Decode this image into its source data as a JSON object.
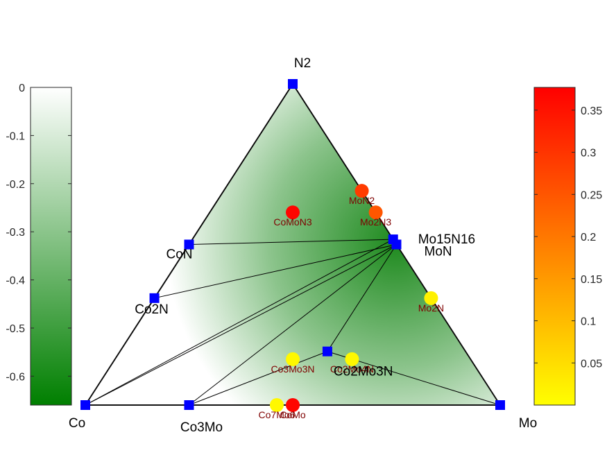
{
  "chart_data": {
    "type": "ternary-phase-diagram",
    "corners": {
      "top": "N2",
      "bottom_left": "Co",
      "bottom_right": "Mo"
    },
    "stable_phases": [
      {
        "name": "N2",
        "x_Co": 0,
        "x_Mo": 0,
        "x_N": 1,
        "label": "N2"
      },
      {
        "name": "Co",
        "x_Co": 1,
        "x_Mo": 0,
        "x_N": 0,
        "label": "Co"
      },
      {
        "name": "Mo",
        "x_Co": 0,
        "x_Mo": 1,
        "x_N": 0,
        "label": "Mo"
      },
      {
        "name": "CoN",
        "x_Co": 0.5,
        "x_Mo": 0,
        "x_N": 0.5,
        "label": "CoN"
      },
      {
        "name": "Co2N",
        "x_Co": 0.667,
        "x_Mo": 0,
        "x_N": 0.333,
        "label": "Co2N"
      },
      {
        "name": "Co3Mo",
        "x_Co": 0.75,
        "x_Mo": 0.25,
        "x_N": 0,
        "label": "Co3Mo"
      },
      {
        "name": "Mo15N16",
        "x_Co": 0,
        "x_Mo": 0.484,
        "x_N": 0.516,
        "label": "Mo15N16"
      },
      {
        "name": "MoN",
        "x_Co": 0,
        "x_Mo": 0.5,
        "x_N": 0.5,
        "label": "MoN"
      },
      {
        "name": "Co2Mo3N",
        "x_Co": 0.333,
        "x_Mo": 0.5,
        "x_N": 0.167,
        "label": "Co2Mo3N"
      }
    ],
    "tie_lines": [
      [
        "N2",
        "CoN"
      ],
      [
        "N2",
        "Mo15N16"
      ],
      [
        "N2",
        "Mo"
      ],
      [
        "Co",
        "Mo"
      ],
      [
        "Co",
        "N2"
      ],
      [
        "CoN",
        "Mo15N16"
      ],
      [
        "Co2N",
        "MoN"
      ],
      [
        "Co",
        "MoN"
      ],
      [
        "Co",
        "Mo15N16"
      ],
      [
        "Co3Mo",
        "MoN"
      ],
      [
        "Co3Mo",
        "Co2Mo3N"
      ],
      [
        "Co2Mo3N",
        "MoN"
      ],
      [
        "Co2Mo3N",
        "Mo"
      ]
    ],
    "unstable_phases": [
      {
        "name": "MoN2",
        "x_Co": 0,
        "x_Mo": 0.333,
        "x_N": 0.667,
        "e_above_hull": 0.29,
        "label": "MoN2"
      },
      {
        "name": "Mo2N3",
        "x_Co": 0,
        "x_Mo": 0.4,
        "x_N": 0.6,
        "e_above_hull": 0.25,
        "label": "Mo2N3"
      },
      {
        "name": "CoMoN3",
        "x_Co": 0.2,
        "x_Mo": 0.2,
        "x_N": 0.6,
        "e_above_hull": 0.37,
        "label": "CoMoN3"
      },
      {
        "name": "Mo2N",
        "x_Co": 0,
        "x_Mo": 0.667,
        "x_N": 0.333,
        "e_above_hull": 0.02,
        "label": "Mo2N"
      },
      {
        "name": "Co3Mo3N",
        "x_Co": 0.4286,
        "x_Mo": 0.4286,
        "x_N": 0.1429,
        "e_above_hull": 0.01,
        "label": "Co3Mo3N"
      },
      {
        "name": "Co2Mo4N",
        "x_Co": 0.2857,
        "x_Mo": 0.5714,
        "x_N": 0.1429,
        "e_above_hull": 0.01,
        "label": "Co2Mo4N"
      },
      {
        "name": "Co7Mo6",
        "x_Co": 0.5385,
        "x_Mo": 0.4615,
        "x_N": 0,
        "e_above_hull": 0.01,
        "label": "Co7Mo6"
      },
      {
        "name": "CoMo",
        "x_Co": 0.5,
        "x_Mo": 0.5,
        "x_N": 0,
        "e_above_hull": 0.37,
        "label": "CoMo"
      }
    ],
    "formation_energy_colorbar": {
      "range": [
        -0.66,
        0
      ],
      "ticks": [
        0,
        -0.1,
        -0.2,
        -0.3,
        -0.4,
        -0.5,
        -0.6
      ],
      "tick_labels": [
        "0",
        "-0.1",
        "-0.2",
        "-0.3",
        "-0.4",
        "-0.5",
        "-0.6"
      ],
      "color_low": "#007f00",
      "color_high": "#ffffff"
    },
    "hull_distance_colorbar": {
      "range": [
        0,
        0.377
      ],
      "ticks": [
        0.05,
        0.1,
        0.15,
        0.2,
        0.25,
        0.3,
        0.35
      ],
      "tick_labels": [
        "0.05",
        "0.1",
        "0.15",
        "0.2",
        "0.25",
        "0.3",
        "0.35"
      ],
      "color_low": "#ffff00",
      "color_high": "#ff0000"
    },
    "colors": {
      "stable_marker": "#0000ff",
      "tie_line": "#000000",
      "unstable_label": "#7f0000",
      "triangle_edge": "#262626"
    }
  }
}
